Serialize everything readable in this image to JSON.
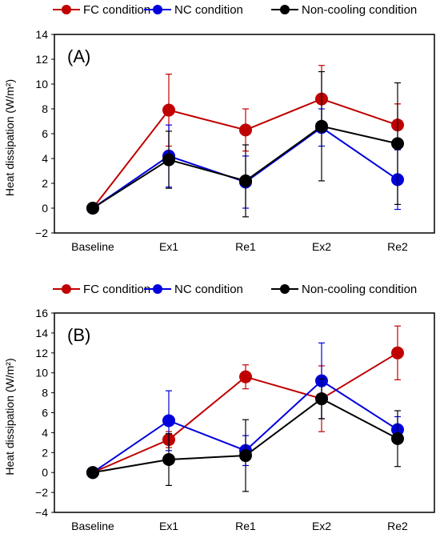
{
  "legend": [
    {
      "name": "FC condition",
      "color": "#c00000"
    },
    {
      "name": "NC condition",
      "color": "#0000dd"
    },
    {
      "name": "Non-cooling condition",
      "color": "#000000"
    }
  ],
  "chart_data": [
    {
      "type": "line",
      "panel_label": "(A)",
      "ylabel": "Heat dissipation (W/m²)",
      "categories": [
        "Baseline",
        "Ex1",
        "Re1",
        "Ex2",
        "Re2"
      ],
      "ylim": [
        -2,
        14
      ],
      "yticks": [
        -2,
        0,
        2,
        4,
        6,
        8,
        10,
        12,
        14
      ],
      "ytick_labels": [
        "−2",
        "0",
        "2",
        "4",
        "6",
        "8",
        "10",
        "12",
        "14"
      ],
      "legend_position": "top",
      "grid": false,
      "series": [
        {
          "name": "FC condition",
          "values": [
            0,
            7.9,
            6.3,
            8.8,
            6.7
          ],
          "errors": [
            0,
            2.9,
            1.7,
            2.7,
            1.7
          ]
        },
        {
          "name": "NC condition",
          "values": [
            0,
            4.2,
            2.1,
            6.5,
            2.3
          ],
          "errors": [
            0,
            2.5,
            2.1,
            1.5,
            2.4
          ]
        },
        {
          "name": "Non-cooling condition",
          "values": [
            0,
            3.9,
            2.2,
            6.6,
            5.2
          ],
          "errors": [
            0,
            2.3,
            2.9,
            4.4,
            4.9
          ]
        }
      ]
    },
    {
      "type": "line",
      "panel_label": "(B)",
      "ylabel": "Heat dissipation (W/m²)",
      "categories": [
        "Baseline",
        "Ex1",
        "Re1",
        "Ex2",
        "Re2"
      ],
      "ylim": [
        -4,
        16
      ],
      "yticks": [
        -4,
        -2,
        0,
        2,
        4,
        6,
        8,
        10,
        12,
        14,
        16
      ],
      "ytick_labels": [
        "−4",
        "−2",
        "0",
        "2",
        "4",
        "6",
        "8",
        "10",
        "12",
        "14",
        "16"
      ],
      "legend_position": "top",
      "grid": false,
      "series": [
        {
          "name": "FC condition",
          "values": [
            0,
            3.3,
            9.6,
            7.4,
            12.0
          ],
          "errors": [
            0,
            0.8,
            1.2,
            3.3,
            2.7
          ]
        },
        {
          "name": "NC condition",
          "values": [
            0,
            5.2,
            2.2,
            9.2,
            4.3
          ],
          "errors": [
            0,
            3.0,
            1.5,
            3.8,
            1.3
          ]
        },
        {
          "name": "Non-cooling condition",
          "values": [
            0,
            1.3,
            1.7,
            7.4,
            3.4
          ],
          "errors": [
            0,
            2.6,
            3.6,
            2.0,
            2.8
          ]
        }
      ]
    }
  ]
}
